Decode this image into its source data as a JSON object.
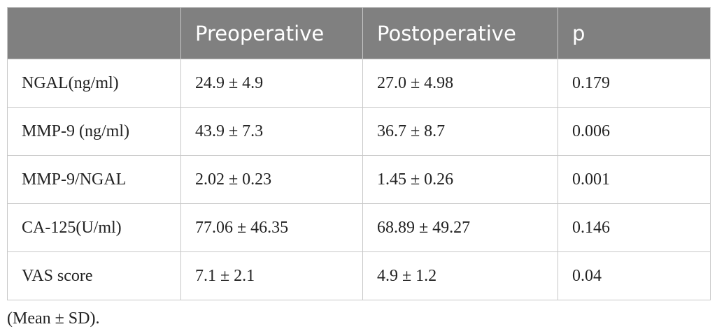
{
  "table": {
    "header": [
      "Preoperative",
      "Postoperative",
      "p"
    ],
    "rows": [
      [
        "NGAL(ng/ml)",
        "24.9 ± 4.9",
        "27.0 ± 4.98",
        "0.179"
      ],
      [
        "MMP-9 (ng/ml)",
        "43.9 ± 7.3",
        "36.7 ± 8.7",
        "0.006"
      ],
      [
        "MMP-9/NGAL",
        "2.02 ± 0.23",
        "1.45 ± 0.26",
        "0.001"
      ],
      [
        "CA-125(U/ml)",
        "77.06 ± 46.35",
        "68.89 ± 49.27",
        "0.146"
      ],
      [
        "VAS score",
        "7.1 ± 2.1",
        "4.9 ± 1.2",
        "0.04"
      ]
    ],
    "caption": "(Mean ± SD)."
  }
}
